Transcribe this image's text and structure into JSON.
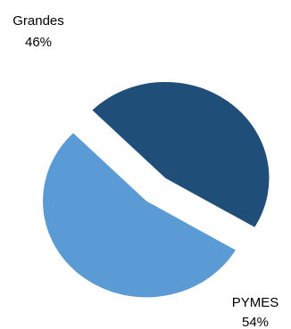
{
  "chart_data": {
    "type": "pie",
    "title": "",
    "slices": [
      {
        "label": "Grandes",
        "value": 46,
        "value_label": "46%",
        "color": "#1F4E79"
      },
      {
        "label": "PYMES",
        "value": 54,
        "value_label": "54%",
        "color": "#5B9BD5"
      }
    ],
    "exploded": true,
    "legend": "none",
    "label_style": "outside-two-line"
  }
}
